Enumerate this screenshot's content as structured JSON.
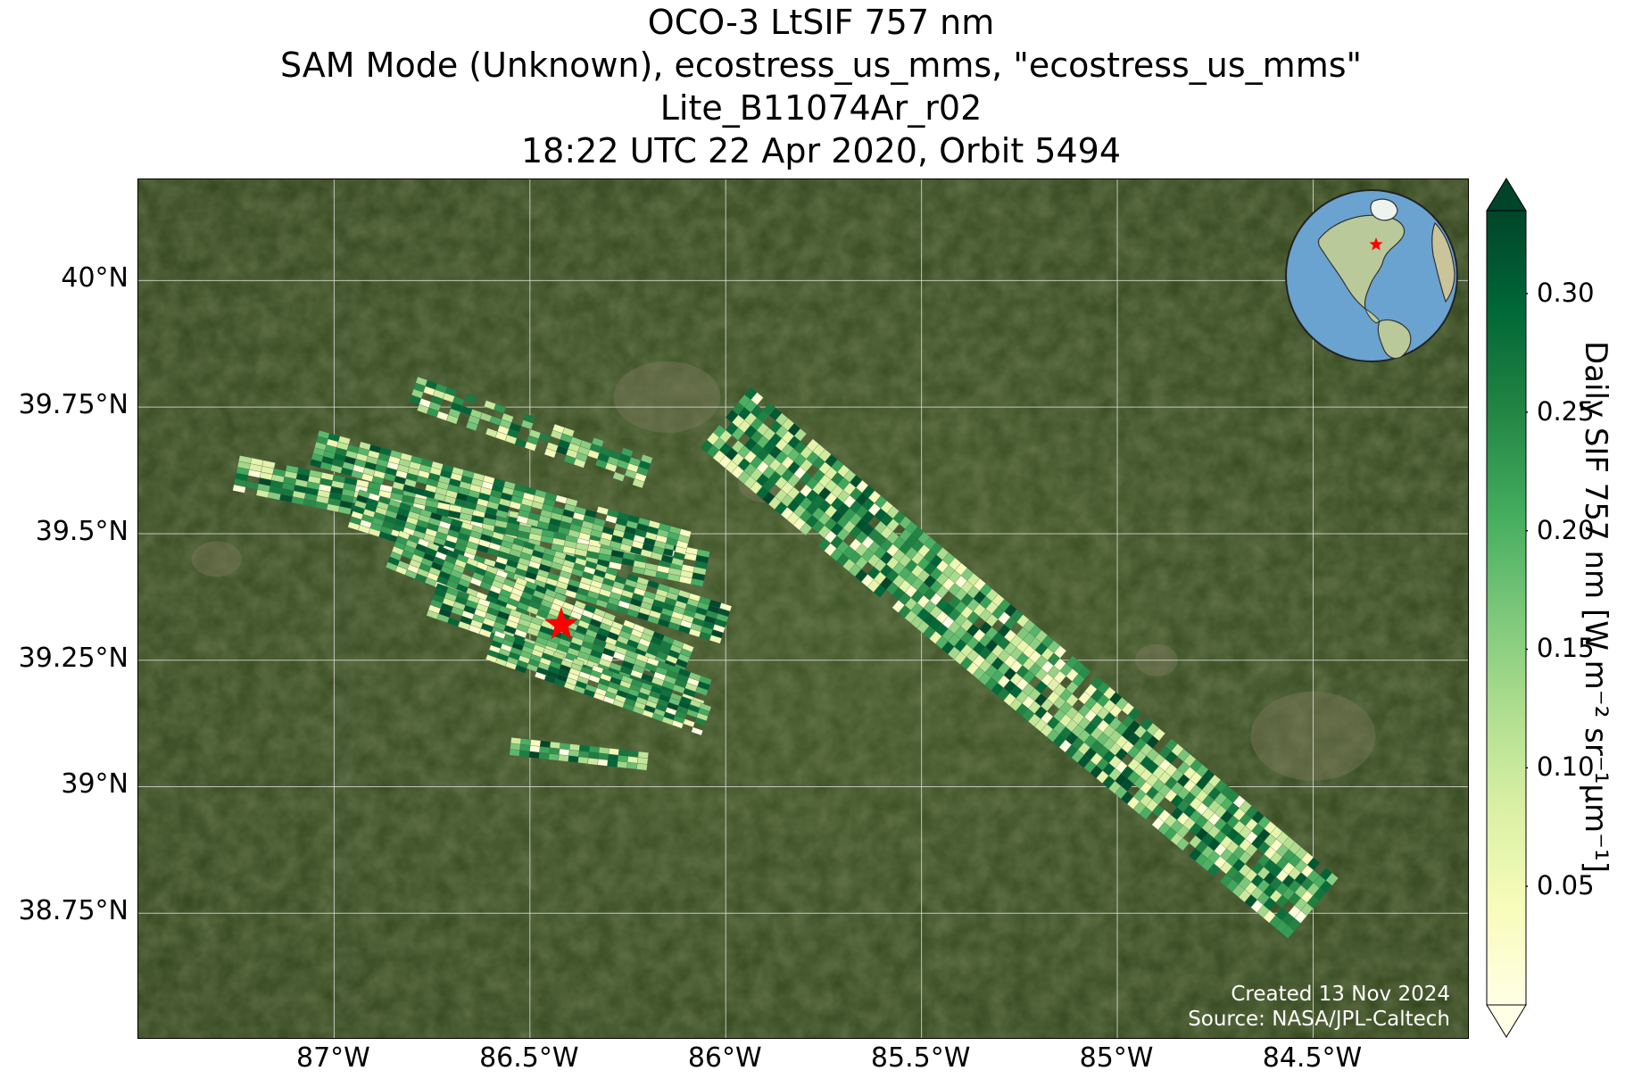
{
  "title": {
    "line1": "OCO-3 LtSIF 757 nm",
    "line2": "SAM Mode (Unknown), ecostress_us_mms, \"ecostress_us_mms\"",
    "line3": "Lite_B11074Ar_r02",
    "line4": "18:22 UTC 22 Apr 2020, Orbit 5494"
  },
  "map": {
    "lon_range": [
      -87.5,
      -84.1
    ],
    "lat_range": [
      38.5,
      40.2
    ],
    "lat_ticks": [
      "40°N",
      "39.75°N",
      "39.5°N",
      "39.25°N",
      "39°N",
      "38.75°N"
    ],
    "lat_tick_values": [
      40,
      39.75,
      39.5,
      39.25,
      39,
      38.75
    ],
    "lon_ticks": [
      "87°W",
      "86.5°W",
      "86°W",
      "85.5°W",
      "85°W",
      "84.5°W"
    ],
    "lon_tick_values": [
      -87,
      -86.5,
      -86,
      -85.5,
      -85,
      -84.5
    ],
    "grid": true,
    "basemap": "satellite imagery",
    "target_marker": {
      "lon": -86.42,
      "lat": 39.32,
      "symbol": "red star"
    },
    "target_color": "#ff0000"
  },
  "credits": {
    "created": "Created 13 Nov 2024",
    "source": "Source: NASA/JPL-Caltech"
  },
  "colorbar": {
    "label": "Daily SIF 757 nm [W m⁻² sr⁻¹μm⁻¹]",
    "colormap": "YlGn",
    "ticks": [
      "0.30",
      "0.25",
      "0.20",
      "0.15",
      "0.10",
      "0.05"
    ],
    "tick_values": [
      0.3,
      0.25,
      0.2,
      0.15,
      0.1,
      0.05
    ],
    "range": [
      0.0,
      0.335
    ],
    "colors": [
      "#ffffe5",
      "#f7fcb9",
      "#d9f0a3",
      "#addd8e",
      "#78c679",
      "#41ab5d",
      "#238443",
      "#006837",
      "#004529"
    ],
    "extend": "both"
  },
  "inset_globe": {
    "marker": "red star",
    "marker_color": "#ff0000",
    "ocean_color": "#6aa3cf",
    "land_color": "#b9c99a"
  }
}
